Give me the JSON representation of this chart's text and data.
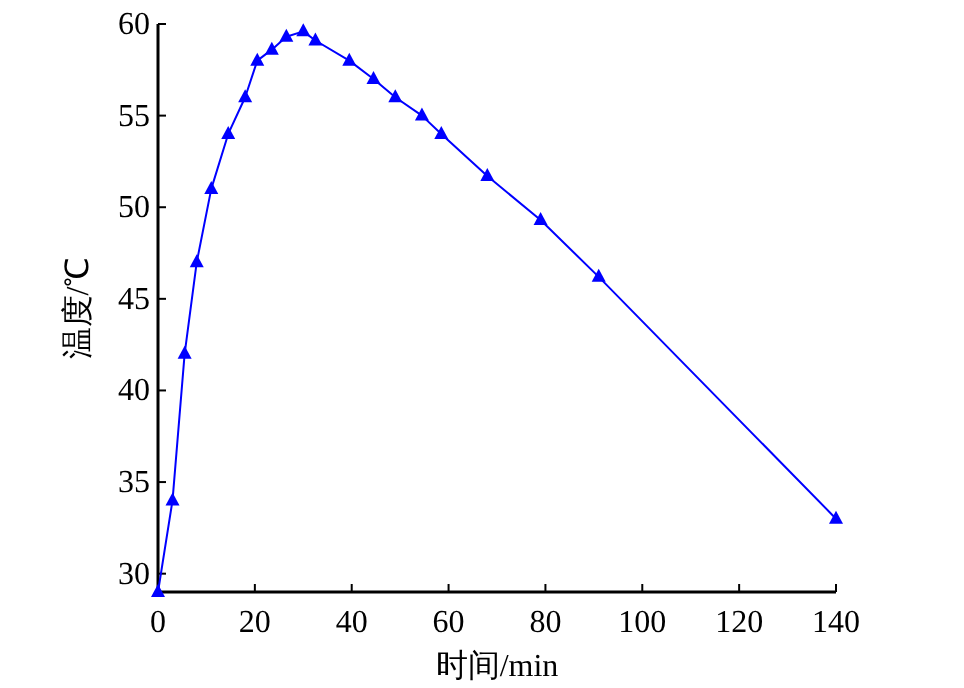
{
  "chart_data": {
    "type": "line",
    "xlabel": "时间/min",
    "ylabel": "温度/℃",
    "x": [
      0,
      3,
      5.5,
      8,
      11,
      14.5,
      18,
      20.5,
      23.5,
      26.5,
      30,
      32.5,
      39.5,
      44.5,
      49,
      54.5,
      58.5,
      68,
      79,
      91,
      140
    ],
    "series": [
      {
        "color": "#0000ff",
        "values": [
          29,
          34,
          42,
          47,
          51,
          54,
          56,
          58,
          58.6,
          59.3,
          59.6,
          59.1,
          58,
          57,
          56,
          55,
          54,
          51.7,
          49.3,
          46.2,
          33
        ]
      }
    ],
    "xlim": [
      0,
      140
    ],
    "ylim": [
      29,
      60
    ],
    "xticks": [
      0,
      20,
      40,
      60,
      80,
      100,
      120,
      140
    ],
    "yticks": [
      30,
      35,
      40,
      45,
      50,
      55,
      60
    ],
    "marker": "triangle",
    "line_style": "solid",
    "grid": false
  }
}
